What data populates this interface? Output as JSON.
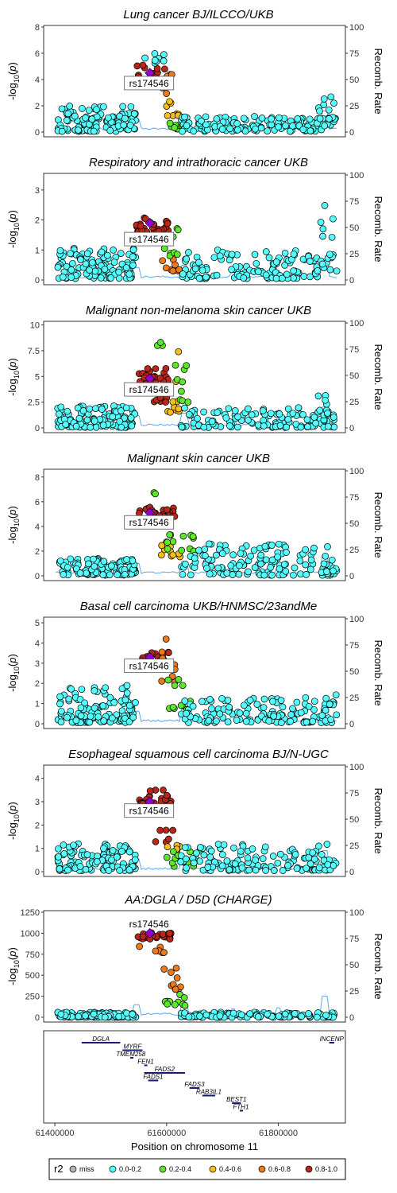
{
  "chart_data": {
    "type": "scatter",
    "x_range": [
      61380000,
      61920000
    ],
    "lead_snp": {
      "label": "rs174546",
      "pos": 61570000
    },
    "recomb_label": "Recomb. Rate",
    "recomb_ticks": [
      0,
      25,
      50,
      75,
      100
    ],
    "panels": [
      {
        "title": "Lung cancer BJ/ILCCO/UKB",
        "ylim": [
          0,
          8
        ],
        "yticks": [
          0,
          2,
          4,
          6,
          8
        ],
        "lead_y": 4.5,
        "lead_label_y": 3.7,
        "clusters": [
          {
            "x0": 61405000,
            "x1": 61545000,
            "n": 120,
            "lo": 0.05,
            "hi": 2.0,
            "cat": 1
          },
          {
            "x0": 61545000,
            "x1": 61600000,
            "n": 28,
            "lo": 3.6,
            "hi": 5.3,
            "cat": 5
          },
          {
            "x0": 61560000,
            "x1": 61600000,
            "n": 8,
            "lo": 5.2,
            "hi": 6.3,
            "cat": 1
          },
          {
            "x0": 61590000,
            "x1": 61610000,
            "n": 6,
            "lo": 2.5,
            "hi": 4.5,
            "cat": 4
          },
          {
            "x0": 61600000,
            "x1": 61625000,
            "n": 8,
            "lo": 1.2,
            "hi": 2.4,
            "cat": 3
          },
          {
            "x0": 61605000,
            "x1": 61640000,
            "n": 10,
            "lo": 0.2,
            "hi": 0.7,
            "cat": 2
          },
          {
            "x0": 61625000,
            "x1": 61900000,
            "n": 130,
            "lo": 0.05,
            "hi": 1.2,
            "cat": 1
          },
          {
            "x0": 61870000,
            "x1": 61905000,
            "n": 14,
            "lo": 1.0,
            "hi": 3.0,
            "cat": 1
          }
        ]
      },
      {
        "title": "Respiratory and intrathoracic cancer UKB",
        "ylim": [
          0,
          3.5
        ],
        "yticks": [
          0,
          1,
          2,
          3
        ],
        "lead_y": 1.9,
        "lead_label_y": 1.35,
        "clusters": [
          {
            "x0": 61405000,
            "x1": 61545000,
            "n": 120,
            "lo": 0.05,
            "hi": 1.1,
            "cat": 1
          },
          {
            "x0": 61545000,
            "x1": 61605000,
            "n": 30,
            "lo": 1.6,
            "hi": 2.1,
            "cat": 5
          },
          {
            "x0": 61590000,
            "x1": 61625000,
            "n": 10,
            "lo": 0.3,
            "hi": 0.7,
            "cat": 4
          },
          {
            "x0": 61590000,
            "x1": 61625000,
            "n": 10,
            "lo": 0.8,
            "hi": 1.8,
            "cat": 2
          },
          {
            "x0": 61625000,
            "x1": 61870000,
            "n": 120,
            "lo": 0.05,
            "hi": 1.0,
            "cat": 1
          },
          {
            "x0": 61870000,
            "x1": 61905000,
            "n": 18,
            "lo": 0.3,
            "hi": 2.8,
            "cat": 1
          }
        ]
      },
      {
        "title": "Malignant non-melanoma skin cancer UKB",
        "ylim": [
          0,
          10.2
        ],
        "yticks": [
          0,
          2.5,
          5,
          7.5,
          10
        ],
        "lead_y": 4.8,
        "lead_label_y": 3.7,
        "clusters": [
          {
            "x0": 61405000,
            "x1": 61545000,
            "n": 120,
            "lo": 0.05,
            "hi": 2.2,
            "cat": 1
          },
          {
            "x0": 61550000,
            "x1": 61610000,
            "n": 26,
            "lo": 4.5,
            "hi": 5.8,
            "cat": 5
          },
          {
            "x0": 61570000,
            "x1": 61600000,
            "n": 6,
            "lo": 2.5,
            "hi": 3.0,
            "cat": 5
          },
          {
            "x0": 61580000,
            "x1": 61600000,
            "n": 3,
            "lo": 8.0,
            "hi": 8.4,
            "cat": 2
          },
          {
            "x0": 61600000,
            "x1": 61625000,
            "n": 10,
            "lo": 1.5,
            "hi": 7.5,
            "cat": 3
          },
          {
            "x0": 61600000,
            "x1": 61640000,
            "n": 10,
            "lo": 2.5,
            "hi": 6.8,
            "cat": 2
          },
          {
            "x0": 61625000,
            "x1": 61900000,
            "n": 130,
            "lo": 0.05,
            "hi": 2.0,
            "cat": 1
          },
          {
            "x0": 61870000,
            "x1": 61905000,
            "n": 10,
            "lo": 1.0,
            "hi": 3.5,
            "cat": 1
          }
        ]
      },
      {
        "title": "Malignant skin cancer UKB",
        "ylim": [
          0,
          8.5
        ],
        "yticks": [
          0,
          2,
          4,
          6,
          8
        ],
        "lead_y": 5.1,
        "lead_label_y": 4.3,
        "clusters": [
          {
            "x0": 61405000,
            "x1": 61545000,
            "n": 120,
            "lo": 0.05,
            "hi": 1.4,
            "cat": 1
          },
          {
            "x0": 61550000,
            "x1": 61615000,
            "n": 30,
            "lo": 4.8,
            "hi": 5.6,
            "cat": 5
          },
          {
            "x0": 61575000,
            "x1": 61590000,
            "n": 2,
            "lo": 6.6,
            "hi": 6.8,
            "cat": 2
          },
          {
            "x0": 61590000,
            "x1": 61625000,
            "n": 10,
            "lo": 1.5,
            "hi": 3.0,
            "cat": 3
          },
          {
            "x0": 61600000,
            "x1": 61650000,
            "n": 12,
            "lo": 2.0,
            "hi": 3.5,
            "cat": 2
          },
          {
            "x0": 61625000,
            "x1": 61900000,
            "n": 130,
            "lo": 0.05,
            "hi": 2.6,
            "cat": 1
          },
          {
            "x0": 61870000,
            "x1": 61905000,
            "n": 12,
            "lo": 0.2,
            "hi": 1.4,
            "cat": 1
          }
        ]
      },
      {
        "title": "Basal cell carcinoma UKB/HNMSC/23andMe",
        "ylim": [
          0,
          5.2
        ],
        "yticks": [
          0,
          1,
          2,
          3,
          4,
          5
        ],
        "lead_y": 3.3,
        "lead_label_y": 2.85,
        "clusters": [
          {
            "x0": 61405000,
            "x1": 61545000,
            "n": 120,
            "lo": 0.05,
            "hi": 1.9,
            "cat": 1
          },
          {
            "x0": 61545000,
            "x1": 61605000,
            "n": 24,
            "lo": 2.8,
            "hi": 3.6,
            "cat": 5
          },
          {
            "x0": 61590000,
            "x1": 61615000,
            "n": 10,
            "lo": 2.0,
            "hi": 4.2,
            "cat": 4
          },
          {
            "x0": 61600000,
            "x1": 61650000,
            "n": 12,
            "lo": 0.7,
            "hi": 2.2,
            "cat": 2
          },
          {
            "x0": 61625000,
            "x1": 61900000,
            "n": 130,
            "lo": 0.05,
            "hi": 1.3,
            "cat": 1
          },
          {
            "x0": 61870000,
            "x1": 61905000,
            "n": 8,
            "lo": 0.2,
            "hi": 1.6,
            "cat": 1
          }
        ]
      },
      {
        "title": "Esophageal squamous cell carcinoma BJ/N-UGC",
        "ylim": [
          0,
          4.5
        ],
        "yticks": [
          0,
          1,
          2,
          3,
          4
        ],
        "lead_y": 3.0,
        "lead_label_y": 2.6,
        "clusters": [
          {
            "x0": 61405000,
            "x1": 61545000,
            "n": 120,
            "lo": 0.05,
            "hi": 1.2,
            "cat": 1
          },
          {
            "x0": 61550000,
            "x1": 61610000,
            "n": 28,
            "lo": 2.9,
            "hi": 3.5,
            "cat": 5
          },
          {
            "x0": 61580000,
            "x1": 61615000,
            "n": 6,
            "lo": 1.2,
            "hi": 2.2,
            "cat": 5
          },
          {
            "x0": 61600000,
            "x1": 61625000,
            "n": 6,
            "lo": 0.9,
            "hi": 1.5,
            "cat": 3
          },
          {
            "x0": 61600000,
            "x1": 61660000,
            "n": 12,
            "lo": 0.2,
            "hi": 1.0,
            "cat": 2
          },
          {
            "x0": 61625000,
            "x1": 61900000,
            "n": 130,
            "lo": 0.05,
            "hi": 1.2,
            "cat": 1
          },
          {
            "x0": 61870000,
            "x1": 61905000,
            "n": 8,
            "lo": 0.05,
            "hi": 0.6,
            "cat": 1
          }
        ]
      },
      {
        "title": "AA:DGLA / D5D (CHARGE)",
        "ylim": [
          0,
          1250
        ],
        "yticks": [
          0,
          250,
          500,
          750,
          1000,
          1250
        ],
        "lead_y": 1000,
        "lead_label_y": 1110,
        "clusters": [
          {
            "x0": 61405000,
            "x1": 61545000,
            "n": 120,
            "lo": 0,
            "hi": 60,
            "cat": 1
          },
          {
            "x0": 61545000,
            "x1": 61610000,
            "n": 26,
            "lo": 930,
            "hi": 1010,
            "cat": 5
          },
          {
            "x0": 61550000,
            "x1": 61600000,
            "n": 6,
            "lo": 770,
            "hi": 850,
            "cat": 4
          },
          {
            "x0": 61590000,
            "x1": 61625000,
            "n": 10,
            "lo": 330,
            "hi": 600,
            "cat": 4
          },
          {
            "x0": 61595000,
            "x1": 61645000,
            "n": 10,
            "lo": 130,
            "hi": 280,
            "cat": 2
          },
          {
            "x0": 61625000,
            "x1": 61900000,
            "n": 130,
            "lo": 0,
            "hi": 60,
            "cat": 1
          }
        ]
      }
    ],
    "genes": [
      {
        "name": "DGLA",
        "start": 61448000,
        "end": 61517000,
        "row": 0
      },
      {
        "name": "INCENP",
        "start": 61891000,
        "end": 61900000,
        "row": 0
      },
      {
        "name": "MYRF",
        "start": 61521000,
        "end": 61557000,
        "row": 1
      },
      {
        "name": "TMEM258",
        "start": 61535000,
        "end": 61537000,
        "row": 2
      },
      {
        "name": "FEN1",
        "start": 61560000,
        "end": 61565000,
        "row": 3
      },
      {
        "name": "FADS2",
        "start": 61560000,
        "end": 61633000,
        "row": 4
      },
      {
        "name": "FADS1",
        "start": 61567000,
        "end": 61585000,
        "row": 5
      },
      {
        "name": "FADS3",
        "start": 61641000,
        "end": 61659000,
        "row": 6
      },
      {
        "name": "RAB3IL1",
        "start": 61664000,
        "end": 61687000,
        "row": 7
      },
      {
        "name": "BEST1",
        "start": 61717000,
        "end": 61733000,
        "row": 8
      },
      {
        "name": "FTH1",
        "start": 61731000,
        "end": 61735000,
        "row": 9
      }
    ],
    "x_ticks": [
      61400000,
      61600000,
      61800000
    ],
    "x_label": "Position on chromosome 11",
    "legend": {
      "title": "r2",
      "items": [
        {
          "label": "miss",
          "color": "#B3B3B3"
        },
        {
          "label": "0.0-0.2",
          "color": "#54FFFF"
        },
        {
          "label": "0.2-0.4",
          "color": "#5CE72A"
        },
        {
          "label": "0.4-0.6",
          "color": "#F5BE1D"
        },
        {
          "label": "0.6-0.8",
          "color": "#EC7A1B"
        },
        {
          "label": "0.8-1.0",
          "color": "#B8271A"
        }
      ]
    },
    "lead_color": "#9400D3",
    "recomb_color": "#5DA5F0"
  }
}
